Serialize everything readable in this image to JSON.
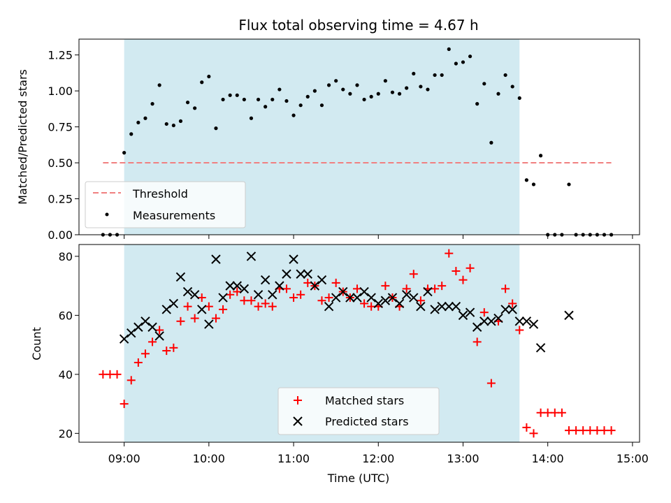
{
  "chart_data": {
    "type": "scatter",
    "title": "Flux total observing time = 4.67 h",
    "xlabel": "Time (UTC)",
    "x_ticks": [
      "09:00",
      "10:00",
      "11:00",
      "12:00",
      "13:00",
      "14:00",
      "15:00"
    ],
    "xlim": [
      "08:28",
      "15:05"
    ],
    "highlight_span": [
      "09:00",
      "13:40"
    ],
    "colors": {
      "span": "#add8e6",
      "threshold": "#f08080",
      "measurements": "#000000",
      "matched": "#ff0000",
      "predicted": "#000000"
    },
    "panels": [
      {
        "ylabel": "Matched/Predicted stars",
        "ylim": [
          0,
          1.36
        ],
        "y_ticks": [
          "0.00",
          "0.25",
          "0.50",
          "0.75",
          "1.00",
          "1.25"
        ],
        "legend_location": "lower-left",
        "threshold": {
          "name": "Threshold",
          "value": 0.5,
          "x_range": [
            "08:45",
            "14:45"
          ]
        },
        "series": [
          {
            "name": "Measurements",
            "marker": "dot",
            "x": [
              "08:45",
              "08:50",
              "08:55",
              "09:00",
              "09:05",
              "09:10",
              "09:15",
              "09:20",
              "09:25",
              "09:30",
              "09:35",
              "09:40",
              "09:45",
              "09:50",
              "09:55",
              "10:00",
              "10:05",
              "10:10",
              "10:15",
              "10:20",
              "10:25",
              "10:30",
              "10:35",
              "10:40",
              "10:45",
              "10:50",
              "10:55",
              "11:00",
              "11:05",
              "11:10",
              "11:15",
              "11:20",
              "11:25",
              "11:30",
              "11:35",
              "11:40",
              "11:45",
              "11:50",
              "11:55",
              "12:00",
              "12:05",
              "12:10",
              "12:15",
              "12:20",
              "12:25",
              "12:30",
              "12:35",
              "12:40",
              "12:45",
              "12:50",
              "12:55",
              "13:00",
              "13:05",
              "13:10",
              "13:15",
              "13:20",
              "13:25",
              "13:30",
              "13:35",
              "13:40",
              "13:45",
              "13:50",
              "13:55",
              "14:00",
              "14:05",
              "14:10",
              "14:15",
              "14:20",
              "14:25",
              "14:30",
              "14:35",
              "14:40",
              "14:45"
            ],
            "y": [
              0,
              0,
              0,
              0.57,
              0.7,
              0.78,
              0.81,
              0.91,
              1.04,
              0.77,
              0.76,
              0.79,
              0.92,
              0.88,
              1.06,
              1.1,
              0.74,
              0.94,
              0.97,
              0.97,
              0.94,
              0.81,
              0.94,
              0.89,
              0.94,
              1.01,
              0.93,
              0.83,
              0.9,
              0.96,
              1.0,
              0.9,
              1.04,
              1.07,
              1.01,
              0.98,
              1.04,
              0.94,
              0.96,
              0.98,
              1.07,
              0.99,
              0.98,
              1.02,
              1.12,
              1.03,
              1.01,
              1.11,
              1.11,
              1.29,
              1.19,
              1.2,
              1.24,
              0.91,
              1.05,
              0.64,
              0.98,
              1.11,
              1.03,
              0.95,
              0.38,
              0.35,
              0.55,
              0,
              0,
              0,
              0.35,
              0,
              0,
              0,
              0,
              0,
              0
            ]
          }
        ]
      },
      {
        "ylabel": "Count",
        "ylim": [
          17,
          84
        ],
        "y_ticks": [
          "20",
          "40",
          "60",
          "80"
        ],
        "legend_location": "lower-center",
        "series": [
          {
            "name": "Matched stars",
            "marker": "plus",
            "x": [
              "08:45",
              "08:50",
              "08:55",
              "09:00",
              "09:05",
              "09:10",
              "09:15",
              "09:20",
              "09:25",
              "09:30",
              "09:35",
              "09:40",
              "09:45",
              "09:50",
              "09:55",
              "10:00",
              "10:05",
              "10:10",
              "10:15",
              "10:20",
              "10:25",
              "10:30",
              "10:35",
              "10:40",
              "10:45",
              "10:50",
              "10:55",
              "11:00",
              "11:05",
              "11:10",
              "11:15",
              "11:20",
              "11:25",
              "11:30",
              "11:35",
              "11:40",
              "11:45",
              "11:50",
              "11:55",
              "12:00",
              "12:05",
              "12:10",
              "12:15",
              "12:20",
              "12:25",
              "12:30",
              "12:35",
              "12:40",
              "12:45",
              "12:50",
              "12:55",
              "13:00",
              "13:05",
              "13:10",
              "13:15",
              "13:20",
              "13:25",
              "13:30",
              "13:35",
              "13:40",
              "13:45",
              "13:50",
              "13:55",
              "14:00",
              "14:05",
              "14:10",
              "14:15",
              "14:20",
              "14:25",
              "14:30",
              "14:35",
              "14:40",
              "14:45"
            ],
            "y": [
              40,
              40,
              40,
              30,
              38,
              44,
              47,
              51,
              55,
              48,
              49,
              58,
              63,
              59,
              66,
              63,
              59,
              62,
              67,
              68,
              65,
              65,
              63,
              64,
              63,
              69,
              69,
              66,
              67,
              71,
              70,
              65,
              66,
              71,
              68,
              66,
              69,
              64,
              63,
              63,
              70,
              66,
              63,
              69,
              74,
              65,
              69,
              69,
              70,
              81,
              75,
              72,
              76,
              51,
              61,
              37,
              58,
              69,
              64,
              55,
              22,
              20,
              27,
              27,
              27,
              27,
              21,
              21,
              21,
              21,
              21,
              21,
              21
            ]
          },
          {
            "name": "Predicted stars",
            "marker": "x",
            "x": [
              "09:00",
              "09:05",
              "09:10",
              "09:15",
              "09:20",
              "09:25",
              "09:30",
              "09:35",
              "09:40",
              "09:45",
              "09:50",
              "09:55",
              "10:00",
              "10:05",
              "10:10",
              "10:15",
              "10:20",
              "10:25",
              "10:30",
              "10:35",
              "10:40",
              "10:45",
              "10:50",
              "10:55",
              "11:00",
              "11:05",
              "11:10",
              "11:15",
              "11:20",
              "11:25",
              "11:30",
              "11:35",
              "11:40",
              "11:45",
              "11:50",
              "11:55",
              "12:00",
              "12:05",
              "12:10",
              "12:15",
              "12:20",
              "12:25",
              "12:30",
              "12:35",
              "12:40",
              "12:45",
              "12:50",
              "12:55",
              "13:00",
              "13:05",
              "13:10",
              "13:15",
              "13:20",
              "13:25",
              "13:30",
              "13:35",
              "13:40",
              "13:45",
              "13:50",
              "13:55",
              "14:15"
            ],
            "y": [
              52,
              54,
              56,
              58,
              56,
              53,
              62,
              64,
              73,
              68,
              67,
              62,
              57,
              79,
              66,
              70,
              70,
              69,
              80,
              67,
              72,
              67,
              70,
              74,
              79,
              74,
              74,
              70,
              72,
              63,
              66,
              68,
              66,
              66,
              68,
              66,
              64,
              65,
              66,
              64,
              67,
              66,
              63,
              68,
              62,
              63,
              63,
              63,
              60,
              61,
              56,
              58,
              58,
              59,
              62,
              62,
              58,
              58,
              57,
              49,
              60
            ]
          }
        ]
      }
    ]
  }
}
